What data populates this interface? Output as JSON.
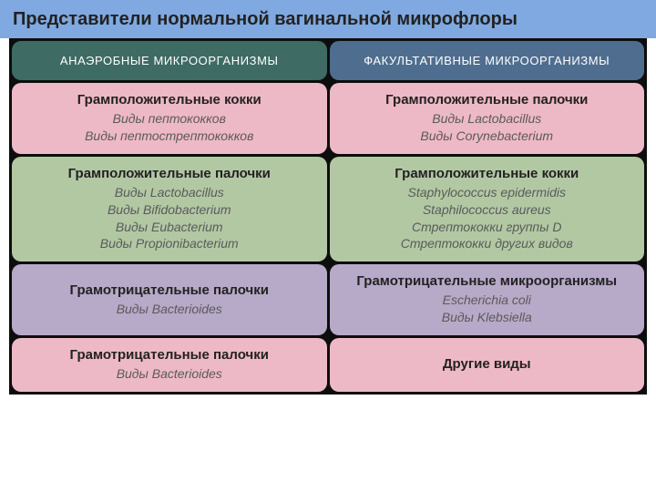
{
  "title": "Представители нормальной вагинальной микрофлоры",
  "colors": {
    "title_bg": "#7fa9e0",
    "table_bg": "#0d0d0d",
    "header_left_bg": "#3e6b64",
    "header_right_bg": "#4f6e8f",
    "pink_bg": "#eeb9c6",
    "green_bg": "#b2c8a3",
    "lilac_bg": "#b7a9c8"
  },
  "header": {
    "left": "АНАЭРОБНЫЕ МИКРООРГАНИЗМЫ",
    "right": "ФАКУЛЬТАТИВНЫЕ МИКРООРГАНИЗМЫ"
  },
  "rows": [
    {
      "color_key": "pink_bg",
      "left": {
        "title": "Грамположительные кокки",
        "items": [
          "Виды пептококков",
          "Виды пептострептококков"
        ]
      },
      "right": {
        "title": "Грамположительные палочки",
        "items": [
          "Виды Lactobacillus",
          "Виды Corynebacterium"
        ]
      }
    },
    {
      "color_key": "green_bg",
      "left": {
        "title": "Грамположительные палочки",
        "items": [
          "Виды Lactobacillus",
          "Виды Bifidobacterium",
          "Виды Eubacterium",
          "Виды Propionibacterium"
        ]
      },
      "right": {
        "title": "Грамположительные кокки",
        "items": [
          "Staphylococcus epidermidis",
          "Staphilococcus aureus",
          "Стрептококки группы D",
          "Стрептококки других видов"
        ]
      }
    },
    {
      "color_key": "lilac_bg",
      "left": {
        "title": "Грамотрицательные палочки",
        "items": [
          "Виды Bacterioides"
        ]
      },
      "right": {
        "title": "Грамотрицательные микроорганизмы",
        "items": [
          "Escherichia coli",
          "Виды Klebsiella"
        ]
      }
    },
    {
      "color_key": "pink_bg",
      "left": {
        "title": "Грамотрицательные палочки",
        "items": [
          "Виды Bacterioides"
        ]
      },
      "right": {
        "title": "Другие виды",
        "items": []
      }
    }
  ]
}
